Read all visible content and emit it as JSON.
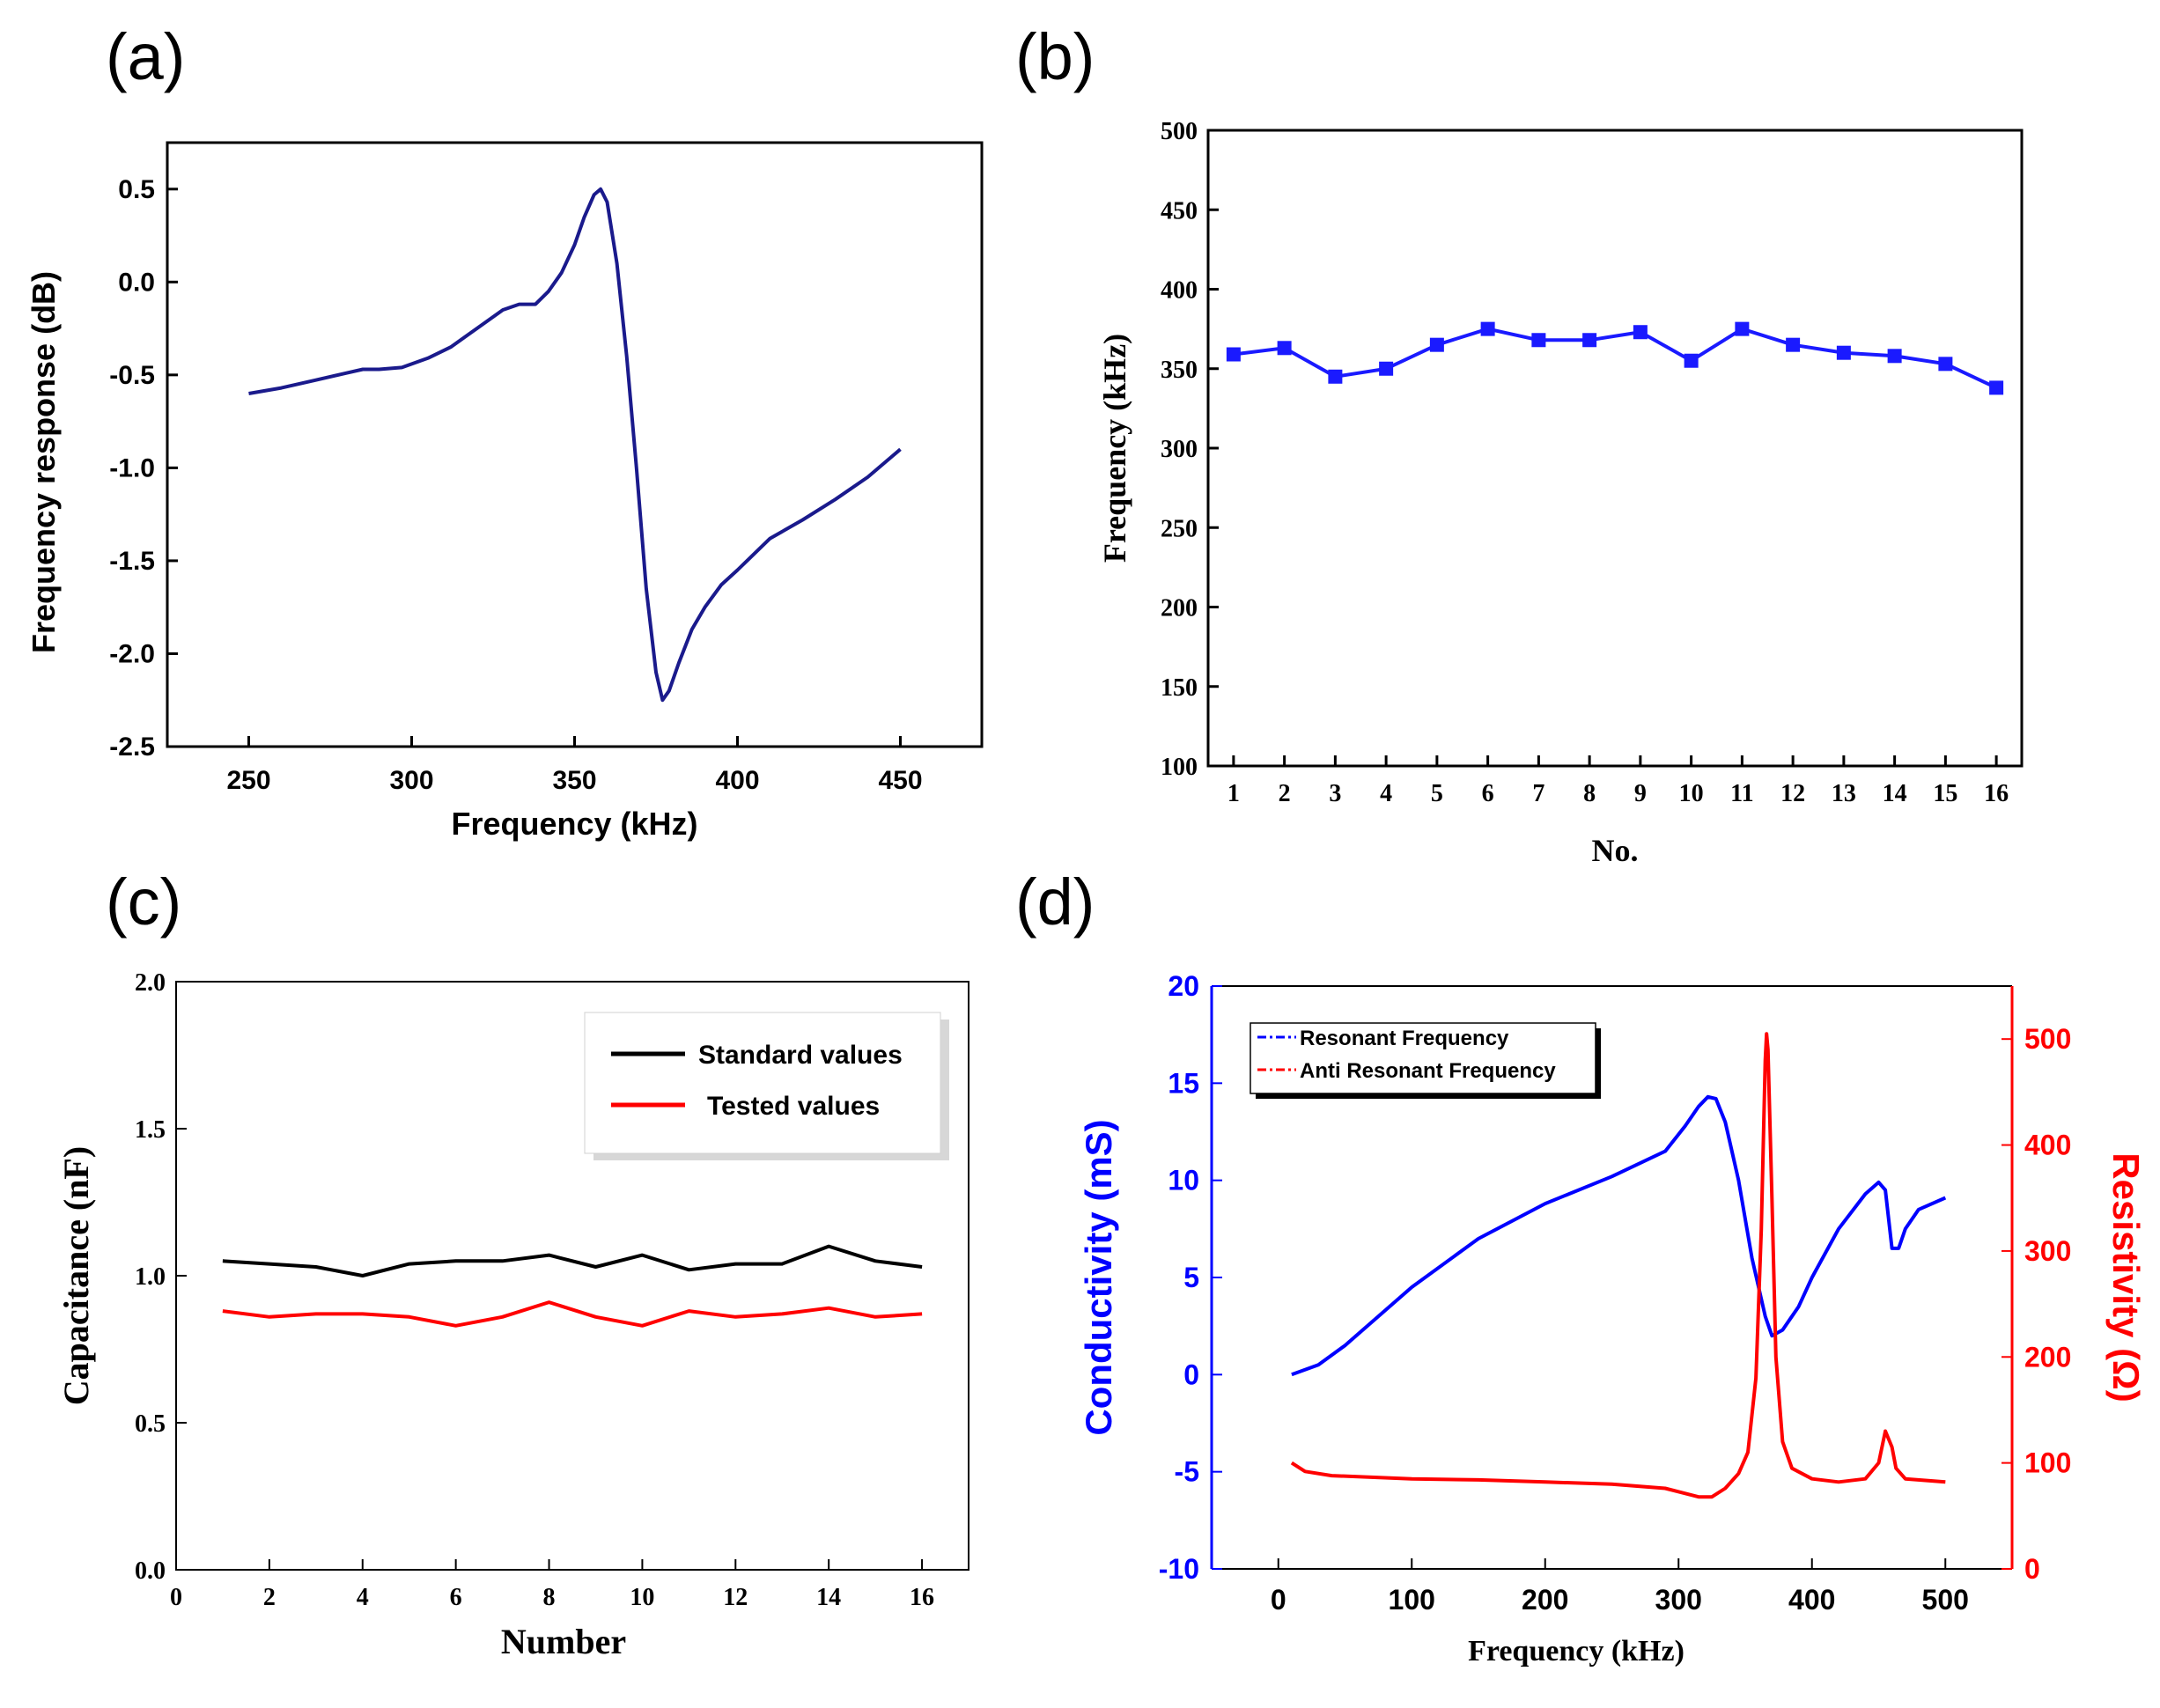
{
  "chart_data": [
    {
      "panel_label": "(a)",
      "type": "line",
      "xlabel": "Frequency (kHz)",
      "ylabel": "Frequency response (dB)",
      "xlim": [
        225,
        475
      ],
      "ylim": [
        -2.5,
        0.75
      ],
      "xticks": [
        "250",
        "300",
        "350",
        "400",
        "450"
      ],
      "yticks": [
        "0.5",
        "0.0",
        "-0.5",
        "-1.0",
        "-1.5",
        "-2.0",
        "-2.5"
      ],
      "line_color": "#1a1a8c",
      "series": [
        {
          "name": "Frequency response",
          "x": [
            250,
            260,
            270,
            280,
            285,
            290,
            297,
            305,
            312,
            320,
            328,
            333,
            338,
            342,
            346,
            350,
            353,
            356,
            358,
            360,
            363,
            366,
            369,
            372,
            375,
            377,
            379,
            382,
            386,
            390,
            395,
            400,
            410,
            420,
            430,
            440,
            450
          ],
          "y": [
            -0.6,
            -0.57,
            -0.53,
            -0.49,
            -0.47,
            -0.47,
            -0.46,
            -0.41,
            -0.35,
            -0.25,
            -0.15,
            -0.12,
            -0.12,
            -0.05,
            0.05,
            0.2,
            0.35,
            0.47,
            0.5,
            0.43,
            0.1,
            -0.4,
            -1.0,
            -1.65,
            -2.1,
            -2.25,
            -2.2,
            -2.05,
            -1.87,
            -1.75,
            -1.63,
            -1.55,
            -1.38,
            -1.28,
            -1.17,
            -1.05,
            -0.9
          ]
        }
      ]
    },
    {
      "panel_label": "(b)",
      "type": "line",
      "xlabel": "No.",
      "ylabel": "Frequency (kHz)",
      "xlim": [
        0.5,
        16.5
      ],
      "ylim": [
        100,
        500
      ],
      "categories": [
        "1",
        "2",
        "3",
        "4",
        "5",
        "6",
        "7",
        "8",
        "9",
        "10",
        "11",
        "12",
        "13",
        "14",
        "15",
        "16"
      ],
      "yticks": [
        "500",
        "450",
        "400",
        "350",
        "300",
        "250",
        "200",
        "150",
        "100"
      ],
      "line_color": "#1a1aff",
      "series": [
        {
          "name": "Frequency",
          "values": [
            359,
            363,
            345,
            350,
            365,
            375,
            368,
            368,
            373,
            355,
            375,
            365,
            360,
            358,
            353,
            338
          ]
        }
      ]
    },
    {
      "panel_label": "(c)",
      "type": "line",
      "xlabel": "Number",
      "ylabel": "Capacitance (nF)",
      "xlim": [
        0,
        17
      ],
      "ylim": [
        0.0,
        2.0
      ],
      "xticks": [
        "0",
        "2",
        "4",
        "6",
        "8",
        "10",
        "12",
        "14",
        "16"
      ],
      "yticks": [
        "2.0",
        "1.5",
        "1.0",
        "0.5",
        "0.0"
      ],
      "legend": [
        "Standard values",
        "Tested values"
      ],
      "series": [
        {
          "name": "Standard values",
          "color": "#000000",
          "x": [
            1,
            2,
            3,
            4,
            5,
            6,
            7,
            8,
            9,
            10,
            11,
            12,
            13,
            14,
            15,
            16
          ],
          "values": [
            1.05,
            1.04,
            1.03,
            1.0,
            1.04,
            1.05,
            1.05,
            1.07,
            1.03,
            1.07,
            1.02,
            1.04,
            1.04,
            1.1,
            1.05,
            1.03
          ]
        },
        {
          "name": "Tested values",
          "color": "#ff0000",
          "x": [
            1,
            2,
            3,
            4,
            5,
            6,
            7,
            8,
            9,
            10,
            11,
            12,
            13,
            14,
            15,
            16
          ],
          "values": [
            0.88,
            0.86,
            0.87,
            0.87,
            0.86,
            0.83,
            0.86,
            0.91,
            0.86,
            0.83,
            0.88,
            0.86,
            0.87,
            0.89,
            0.86,
            0.87
          ]
        }
      ]
    },
    {
      "panel_label": "(d)",
      "type": "line",
      "xlabel": "Frequency (kHz)",
      "ylabel": "Conductivity (mS)",
      "ylabel_right": "Resistivity (Ω)",
      "xlim": [
        -50,
        550
      ],
      "ylim": [
        -10,
        20
      ],
      "ylim_right": [
        0,
        550
      ],
      "xticks": [
        "0",
        "100",
        "200",
        "300",
        "400",
        "500"
      ],
      "yticks": [
        "20",
        "15",
        "10",
        "5",
        "0",
        "-5",
        "-10"
      ],
      "yticks_right": [
        "500",
        "400",
        "300",
        "200",
        "100",
        "0"
      ],
      "left_axis_color": "#0000ff",
      "right_axis_color": "#ff0000",
      "legend": [
        "Resonant Frequency",
        "Anti Resonant Frequency"
      ],
      "series": [
        {
          "name": "Resonant Frequency",
          "axis": "left",
          "color": "#0000ff",
          "x": [
            10,
            30,
            50,
            100,
            150,
            200,
            250,
            290,
            305,
            315,
            322,
            328,
            335,
            345,
            355,
            365,
            370,
            378,
            390,
            400,
            420,
            440,
            450,
            455,
            460,
            465,
            470,
            480,
            500
          ],
          "y": [
            0,
            0.5,
            1.5,
            4.5,
            7.0,
            8.8,
            10.2,
            11.5,
            12.8,
            13.8,
            14.3,
            14.2,
            13.0,
            10.0,
            6.0,
            3.0,
            2.0,
            2.3,
            3.5,
            5.0,
            7.5,
            9.3,
            9.9,
            9.5,
            6.5,
            6.5,
            7.5,
            8.5,
            9.1
          ]
        },
        {
          "name": "Anti Resonant Frequency",
          "axis": "right",
          "color": "#ff0000",
          "x": [
            10,
            20,
            40,
            100,
            150,
            200,
            250,
            290,
            315,
            325,
            335,
            345,
            352,
            358,
            362,
            365,
            366,
            367,
            370,
            373,
            378,
            385,
            400,
            420,
            440,
            450,
            455,
            460,
            463,
            470,
            500
          ],
          "y": [
            100,
            92,
            88,
            85,
            84,
            82,
            80,
            76,
            68,
            68,
            76,
            90,
            110,
            180,
            320,
            480,
            505,
            490,
            350,
            200,
            120,
            95,
            85,
            82,
            85,
            100,
            130,
            115,
            95,
            85,
            82
          ]
        }
      ]
    }
  ]
}
